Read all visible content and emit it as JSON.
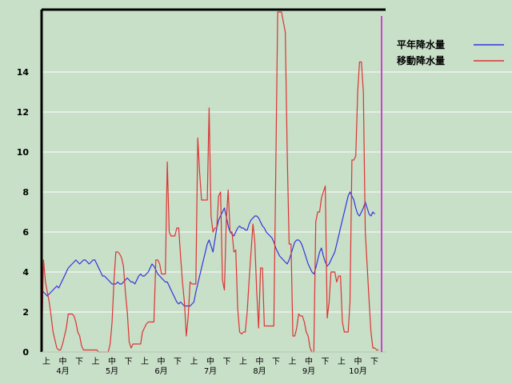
{
  "chart_data": {
    "type": "line",
    "title": "",
    "xlabel": "",
    "ylabel": "",
    "ylim": [
      0,
      16
    ],
    "yticks": [
      0,
      2,
      4,
      6,
      8,
      10,
      12,
      14
    ],
    "grid": "horizontal",
    "legend_position": "top-right",
    "x_sub_labels": [
      "上",
      "中",
      "下",
      "上",
      "中",
      "下",
      "上",
      "中",
      "下",
      "上",
      "中",
      "下",
      "上",
      "中",
      "下",
      "上",
      "中",
      "下",
      "上",
      "中",
      "下"
    ],
    "x_month_labels": [
      "4月",
      "5月",
      "6月",
      "7月",
      "8月",
      "9月",
      "10月"
    ],
    "n_points": 180,
    "series": [
      {
        "name": "平年降水量",
        "color": "#3333dd",
        "values": [
          3.1,
          3.0,
          2.9,
          2.8,
          2.9,
          3.0,
          3.1,
          3.2,
          3.3,
          3.2,
          3.4,
          3.6,
          3.8,
          4.0,
          4.2,
          4.3,
          4.4,
          4.5,
          4.6,
          4.5,
          4.4,
          4.5,
          4.6,
          4.6,
          4.5,
          4.4,
          4.5,
          4.6,
          4.6,
          4.4,
          4.2,
          4.0,
          3.8,
          3.8,
          3.7,
          3.6,
          3.5,
          3.4,
          3.4,
          3.4,
          3.5,
          3.4,
          3.4,
          3.5,
          3.6,
          3.7,
          3.6,
          3.5,
          3.5,
          3.4,
          3.6,
          3.8,
          3.9,
          3.8,
          3.8,
          3.9,
          4.0,
          4.2,
          4.4,
          4.3,
          4.1,
          3.9,
          3.8,
          3.7,
          3.6,
          3.5,
          3.5,
          3.3,
          3.1,
          2.9,
          2.7,
          2.5,
          2.4,
          2.5,
          2.4,
          2.3,
          2.3,
          2.3,
          2.3,
          2.4,
          2.5,
          3.0,
          3.4,
          3.8,
          4.2,
          4.6,
          5.0,
          5.4,
          5.6,
          5.3,
          5.0,
          5.6,
          6.2,
          6.6,
          6.8,
          7.0,
          7.2,
          6.8,
          6.3,
          6.0,
          5.9,
          5.8,
          6.0,
          6.2,
          6.3,
          6.2,
          6.2,
          6.1,
          6.1,
          6.4,
          6.6,
          6.7,
          6.8,
          6.8,
          6.7,
          6.5,
          6.3,
          6.2,
          6.0,
          5.9,
          5.8,
          5.7,
          5.5,
          5.2,
          5.0,
          4.8,
          4.7,
          4.6,
          4.5,
          4.4,
          4.6,
          4.9,
          5.2,
          5.5,
          5.6,
          5.6,
          5.5,
          5.3,
          5.0,
          4.7,
          4.4,
          4.2,
          4.0,
          3.9,
          4.2,
          4.6,
          5.0,
          5.2,
          4.8,
          4.5,
          4.3,
          4.4,
          4.6,
          4.8,
          5.0,
          5.4,
          5.8,
          6.2,
          6.6,
          7.0,
          7.4,
          7.8,
          8.0,
          7.8,
          7.6,
          7.2,
          6.9,
          6.8,
          7.0,
          7.2,
          7.5,
          7.2,
          6.9,
          6.8,
          7.0,
          6.9
        ],
        "note": ""
      },
      {
        "name": "移動降水量",
        "color": "#dd3333",
        "values": [
          0.0,
          4.6,
          3.5,
          3.0,
          2.5,
          1.8,
          1.0,
          0.6,
          0.2,
          0.1,
          0.1,
          0.4,
          0.8,
          1.2,
          1.9,
          1.9,
          1.9,
          1.8,
          1.5,
          1.0,
          0.8,
          0.3,
          0.1,
          0.1,
          0.1,
          0.1,
          0.1,
          0.1,
          0.1,
          0.1,
          0.0,
          0.0,
          0.0,
          0.0,
          0.0,
          0.0,
          0.4,
          1.5,
          3.5,
          5.0,
          5.0,
          4.9,
          4.7,
          4.3,
          3.0,
          2.0,
          0.5,
          0.2,
          0.4,
          0.4,
          0.4,
          0.4,
          0.4,
          1.0,
          1.2,
          1.4,
          1.5,
          1.5,
          1.5,
          1.5,
          4.6,
          4.6,
          4.4,
          3.9,
          3.9,
          3.9,
          9.5,
          6.0,
          5.8,
          5.8,
          5.8,
          6.2,
          6.2,
          4.8,
          3.5,
          2.5,
          0.8,
          1.8,
          3.5,
          3.4,
          3.4,
          3.4,
          10.7,
          9.0,
          7.6,
          7.6,
          7.6,
          7.6,
          12.2,
          6.8,
          6.0,
          6.2,
          6.2,
          7.8,
          8.0,
          3.6,
          3.1,
          6.5,
          8.1,
          6.0,
          6.0,
          5.0,
          5.1,
          2.2,
          1.0,
          0.9,
          1.0,
          1.0,
          2.0,
          3.6,
          5.0,
          6.4,
          5.5,
          3.0,
          1.2,
          4.2,
          4.2,
          1.3,
          1.3,
          1.3,
          1.3,
          1.3,
          1.3,
          9.0,
          17.0,
          17.0,
          17.0,
          16.5,
          16.0,
          10.0,
          5.4,
          5.4,
          0.8,
          0.8,
          1.2,
          1.9,
          1.8,
          1.8,
          1.5,
          1.0,
          0.8,
          0.2,
          0.0,
          0.0,
          6.5,
          7.0,
          7.0,
          7.7,
          8.0,
          8.3,
          1.7,
          2.5,
          4.0,
          4.0,
          4.0,
          3.5,
          3.8,
          3.8,
          1.5,
          1.0,
          1.0,
          1.0,
          2.5,
          9.6,
          9.6,
          9.8,
          13.0,
          14.5,
          14.5,
          13.0,
          6.0,
          4.3,
          2.6,
          1.0,
          0.2,
          0.2,
          0.1,
          0.1
        ],
        "note": ""
      }
    ],
    "legend": [
      {
        "label": "平年降水量",
        "color": "#3333dd"
      },
      {
        "label": "移動降水量",
        "color": "#dd3333"
      }
    ]
  }
}
